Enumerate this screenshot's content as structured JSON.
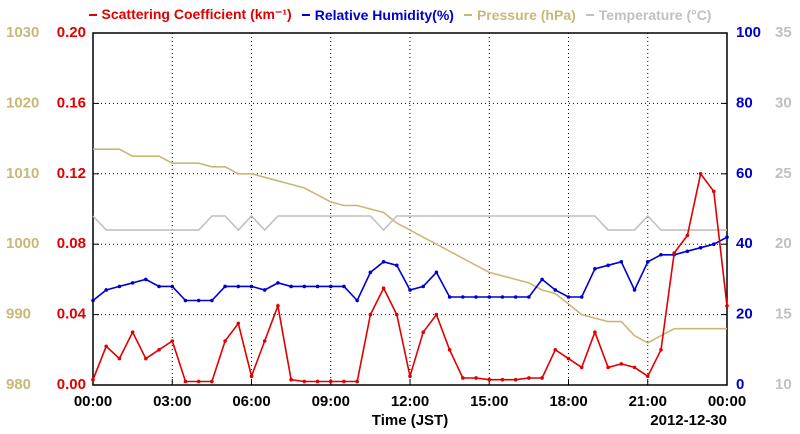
{
  "chart_data": {
    "type": "line",
    "xlabel": "Time (JST)",
    "annotation": "2012-12-30",
    "xlim": [
      0,
      24
    ],
    "xticks": [
      {
        "value": 0,
        "label": "00:00"
      },
      {
        "value": 3,
        "label": "03:00"
      },
      {
        "value": 6,
        "label": "06:00"
      },
      {
        "value": 9,
        "label": "09:00"
      },
      {
        "value": 12,
        "label": "12:00"
      },
      {
        "value": 15,
        "label": "15:00"
      },
      {
        "value": 18,
        "label": "18:00"
      },
      {
        "value": 21,
        "label": "21:00"
      },
      {
        "value": 24,
        "label": "00:00"
      }
    ],
    "ylim": [
      0,
      0.2
    ],
    "yticks": [
      {
        "value": 0,
        "label": "0.00"
      },
      {
        "value": 0.04,
        "label": "0.04"
      },
      {
        "value": 0.08,
        "label": "0.08"
      },
      {
        "value": 0.12,
        "label": "0.12"
      },
      {
        "value": 0.16,
        "label": "0.16"
      },
      {
        "value": 0.2,
        "label": "0.20"
      }
    ],
    "y2lim": [
      0,
      100
    ],
    "y2ticks": [
      0,
      20,
      40,
      60,
      80,
      100
    ],
    "y3lim": [
      980,
      1030
    ],
    "y3ticks": [
      980,
      990,
      1000,
      1010,
      1020,
      1030
    ],
    "y4lim": [
      10,
      35
    ],
    "y4ticks": [
      10,
      15,
      20,
      25,
      30,
      35
    ],
    "grid": true,
    "x": [
      0,
      0.5,
      1,
      1.5,
      2,
      2.5,
      3,
      3.5,
      4,
      4.5,
      5,
      5.5,
      6,
      6.5,
      7,
      7.5,
      8,
      8.5,
      9,
      9.5,
      10,
      10.5,
      11,
      11.5,
      12,
      12.5,
      13,
      13.5,
      14,
      14.5,
      15,
      15.5,
      16,
      16.5,
      17,
      17.5,
      18,
      18.5,
      19,
      19.5,
      20,
      20.5,
      21,
      21.5,
      22,
      22.5,
      23,
      23.5,
      24
    ],
    "series": [
      {
        "name": "Scattering Coefficient (km⁻¹)",
        "color": "#e00000",
        "axis": "y",
        "markers": true,
        "values": [
          0.003,
          0.022,
          0.015,
          0.03,
          0.015,
          0.02,
          0.025,
          0.002,
          0.002,
          0.002,
          0.025,
          0.035,
          0.005,
          0.025,
          0.045,
          0.003,
          0.002,
          0.002,
          0.002,
          0.002,
          0.002,
          0.04,
          0.055,
          0.04,
          0.005,
          0.03,
          0.04,
          0.02,
          0.004,
          0.004,
          0.003,
          0.003,
          0.003,
          0.004,
          0.004,
          0.02,
          0.015,
          0.01,
          0.03,
          0.01,
          0.012,
          0.01,
          0.005,
          0.02,
          0.075,
          0.085,
          0.12,
          0.11,
          0.045
        ]
      },
      {
        "name": "Relative Humidity(%)",
        "color": "#0000cc",
        "axis": "y2",
        "markers": true,
        "values": [
          24,
          27,
          28,
          29,
          30,
          28,
          28,
          24,
          24,
          24,
          28,
          28,
          28,
          27,
          29,
          28,
          28,
          28,
          28,
          28,
          24,
          32,
          35,
          34,
          27,
          28,
          32,
          25,
          25,
          25,
          25,
          25,
          25,
          25,
          30,
          27,
          25,
          25,
          33,
          34,
          35,
          27,
          35,
          37,
          37,
          38,
          39,
          40,
          42
        ]
      },
      {
        "name": "Pressure (hPa)",
        "color": "#c8b878",
        "axis": "y3",
        "markers": false,
        "values": [
          1013.5,
          1013.5,
          1013.5,
          1012.5,
          1012.5,
          1012.5,
          1011.5,
          1011.5,
          1011.5,
          1011,
          1011,
          1010,
          1010,
          1009.5,
          1009,
          1008.5,
          1008,
          1007,
          1006,
          1005.5,
          1005.5,
          1005,
          1004.5,
          1003,
          1002,
          1001,
          1000,
          999,
          998,
          997,
          996,
          995.5,
          995,
          994.5,
          993.5,
          993,
          991.5,
          990,
          989.5,
          989,
          989,
          987,
          986,
          987,
          988,
          988,
          988,
          988,
          988
        ]
      },
      {
        "name": "Temperature (°C)",
        "color": "#c0c0c0",
        "axis": "y4",
        "markers": false,
        "values": [
          22,
          21,
          21,
          21,
          21,
          21,
          21,
          21,
          21,
          22,
          22,
          21,
          22,
          21,
          22,
          22,
          22,
          22,
          22,
          22,
          22,
          22,
          21,
          22,
          22,
          22,
          22,
          22,
          22,
          22,
          22,
          22,
          22,
          22,
          22,
          22,
          22,
          22,
          22,
          21,
          21,
          21,
          22,
          21,
          21,
          21,
          21,
          21,
          21
        ]
      }
    ]
  }
}
